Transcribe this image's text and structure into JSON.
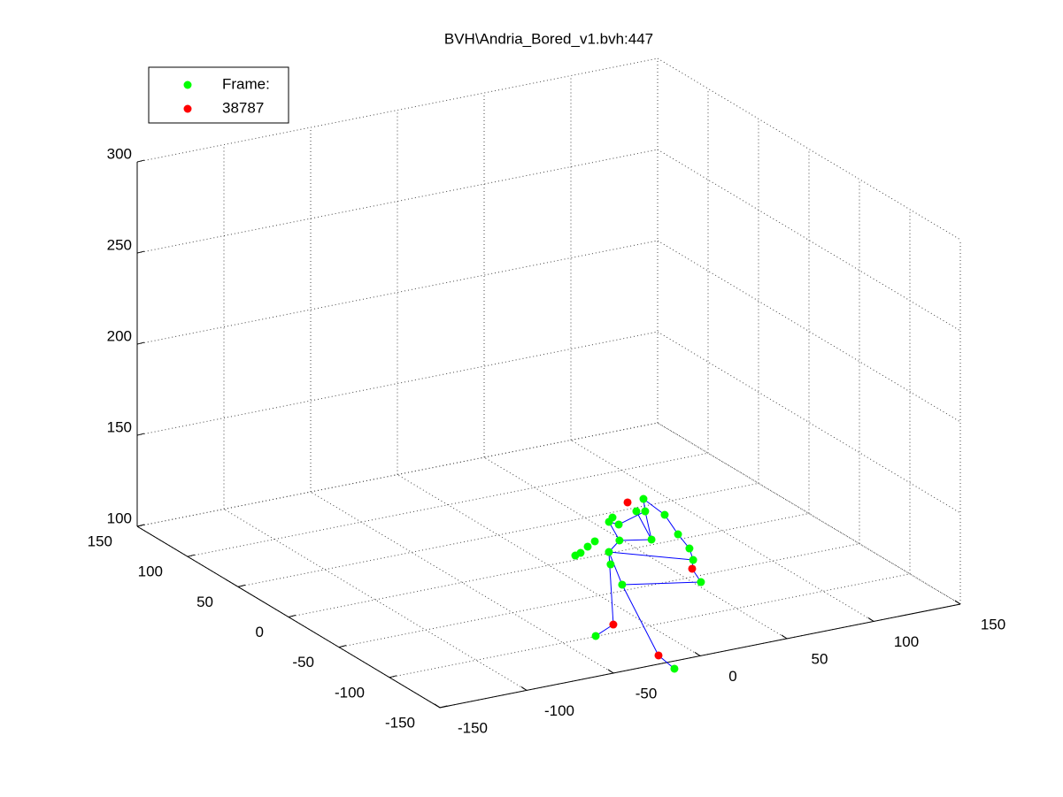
{
  "chart_data": {
    "type": "scatter3d",
    "title": "BVH\\Andria_Bored_v1.bvh:447",
    "xlim": [
      -150,
      150
    ],
    "ylim": [
      -150,
      150
    ],
    "zlim": [
      100,
      300
    ],
    "xticks": [
      -150,
      -100,
      -50,
      0,
      50,
      100,
      150
    ],
    "yticks": [
      -150,
      -100,
      -50,
      0,
      50,
      100,
      150
    ],
    "zticks": [
      100,
      150,
      200,
      250,
      300
    ],
    "grid": true,
    "legend": "upper left",
    "series": [
      {
        "name": "Frame:",
        "color": "#00ff00",
        "x": [
          88.9,
          76.9,
          80.7,
          86.6,
          62.1,
          57.4,
          59.7,
          63.0,
          78.3,
          48.5,
          37.2,
          30.3,
          22.7,
          18.5,
          35.6,
          73.0,
          66.3,
          27.4,
          53.7,
          17.7,
          -30.8,
          -20.4
        ],
        "y": [
          59.0,
          45.4,
          43.2,
          34.0,
          43.6,
          39.0,
          33.3,
          6.5,
          6.5,
          13.3,
          18.3,
          13.5,
          7.5,
          5.5,
          1.6,
          -13.9,
          -29.1,
          -14.2,
          -58.5,
          -42.3,
          -99.5,
          -159.6
        ],
        "z": [
          100,
          100,
          100,
          100,
          100,
          100,
          100,
          100,
          100,
          100,
          100,
          100,
          100,
          100,
          100,
          100,
          100,
          100,
          100,
          100,
          100,
          100
        ]
      },
      {
        "name": "38787",
        "color": "#ff0000",
        "x": [
          79.5,
          59.5,
          -14.9,
          -17.7
        ],
        "y": [
          58.6,
          -39.8,
          -89.6,
          -139.2
        ],
        "z": [
          100,
          100,
          100,
          100
        ]
      }
    ]
  }
}
